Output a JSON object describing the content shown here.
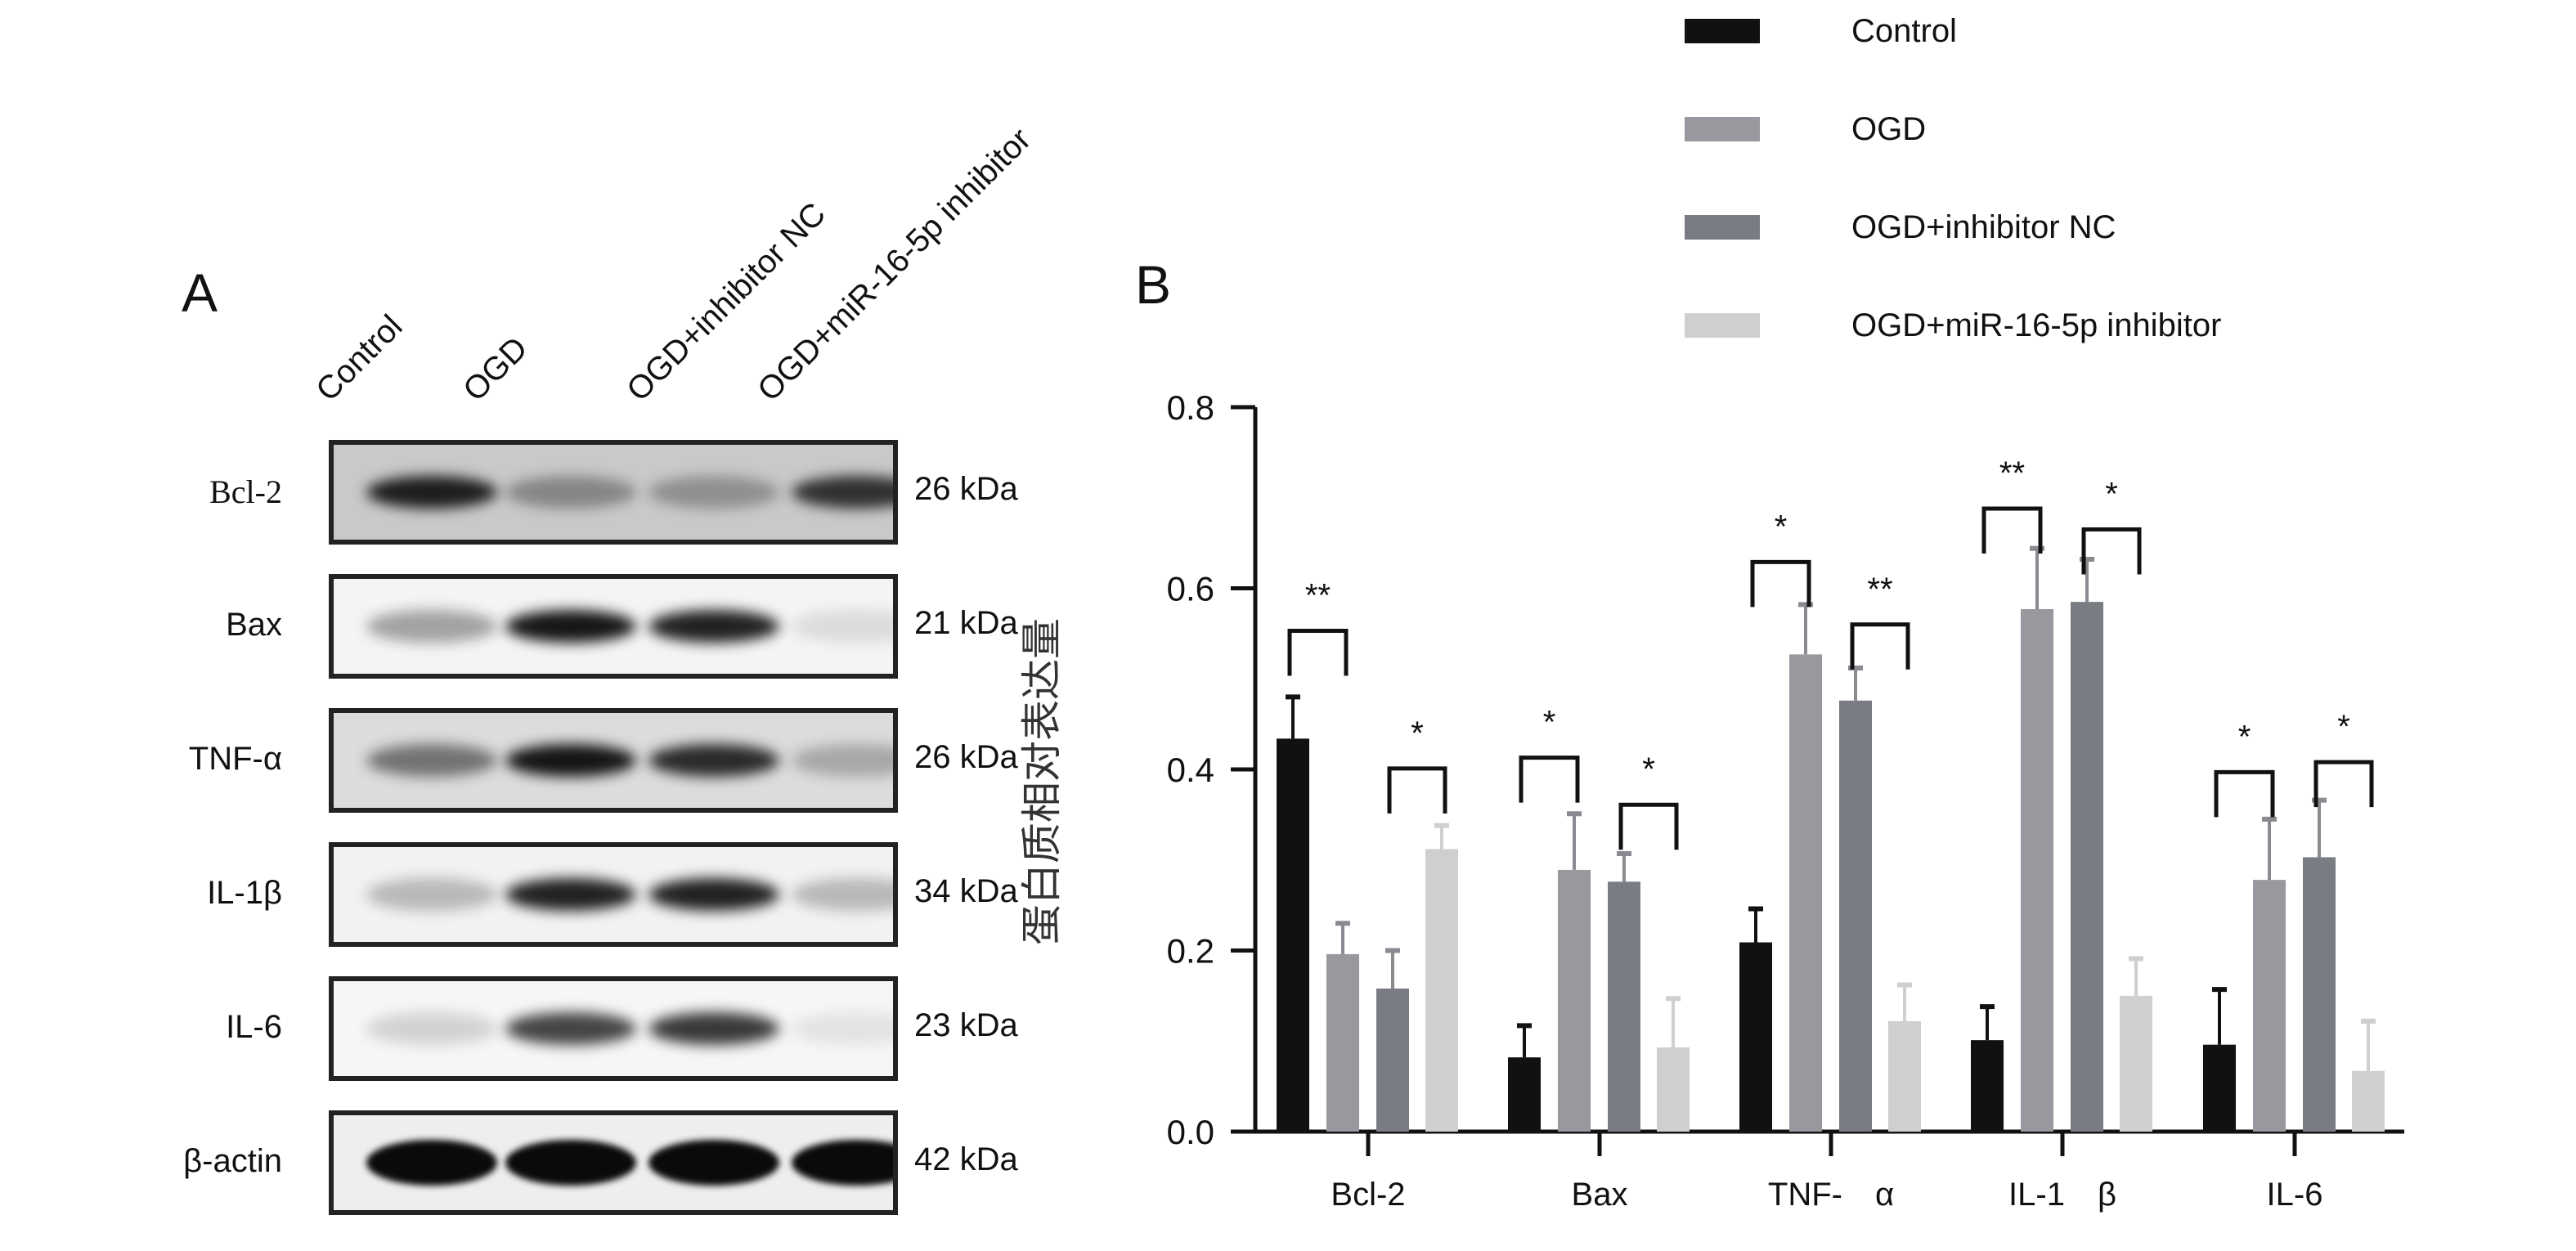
{
  "panel_a": {
    "letter": "A",
    "lanes": [
      "Control",
      "OGD",
      "OGD+inhibitor NC",
      "OGD+miR-16-5p inhibitor"
    ],
    "rows": [
      {
        "label": "Bcl-2",
        "kda": "26 kDa",
        "background": "#c9c9cb",
        "band_intensity": [
          0.9,
          0.35,
          0.3,
          0.8
        ]
      },
      {
        "label": "Bax",
        "kda": "21 kDa",
        "background": "#f4f4f4",
        "band_intensity": [
          0.35,
          0.95,
          0.9,
          0.1
        ]
      },
      {
        "label": "TNF-α",
        "kda": "26 kDa",
        "background": "#dcdcdc",
        "band_intensity": [
          0.5,
          0.95,
          0.85,
          0.25
        ]
      },
      {
        "label": "IL-1β",
        "kda": "34 kDa",
        "background": "#f2f2f2",
        "band_intensity": [
          0.25,
          0.9,
          0.9,
          0.25
        ]
      },
      {
        "label": "IL-6",
        "kda": "23 kDa",
        "background": "#f6f6f6",
        "band_intensity": [
          0.15,
          0.75,
          0.8,
          0.08
        ]
      },
      {
        "label": "β-actin",
        "kda": "42 kDa",
        "background": "#eeeeee",
        "band_intensity": [
          1,
          1,
          1,
          1
        ]
      }
    ]
  },
  "chart_data": {
    "type": "bar",
    "panel_letter": "B",
    "title": "",
    "xlabel": "",
    "ylabel": "蛋白质相对表达量",
    "ylim": [
      0,
      0.8
    ],
    "yticks": [
      "0.0",
      "0.2",
      "0.4",
      "0.6",
      "0.8"
    ],
    "ytick_values": [
      0,
      0.2,
      0.4,
      0.6,
      0.8
    ],
    "categories": [
      "Bcl-2",
      "Bax",
      "TNF-　α",
      "IL-1　β",
      "IL-6"
    ],
    "legend_position": "top-right",
    "series": [
      {
        "name": "Control",
        "color": "#111111",
        "values": [
          0.434,
          0.082,
          0.209,
          0.101,
          0.096
        ],
        "errors": [
          0.046,
          0.035,
          0.037,
          0.037,
          0.061
        ]
      },
      {
        "name": "OGD",
        "color": "#98989e",
        "values": [
          0.196,
          0.289,
          0.527,
          0.577,
          0.278
        ],
        "errors": [
          0.034,
          0.062,
          0.055,
          0.067,
          0.067
        ]
      },
      {
        "name": "OGD+inhibitor NC",
        "color": "#7a7c84",
        "values": [
          0.158,
          0.276,
          0.476,
          0.585,
          0.303
        ],
        "errors": [
          0.042,
          0.031,
          0.036,
          0.047,
          0.063
        ]
      },
      {
        "name": "OGD+miR-16-5p inhibitor",
        "color": "#cfcfcf",
        "values": [
          0.312,
          0.093,
          0.122,
          0.15,
          0.067
        ],
        "errors": [
          0.026,
          0.054,
          0.04,
          0.041,
          0.055
        ]
      }
    ],
    "significance": [
      {
        "category": 0,
        "pair": [
          0,
          1
        ],
        "label": "**",
        "level": 0.553
      },
      {
        "category": 0,
        "pair": [
          2,
          3
        ],
        "label": "*",
        "level": 0.401
      },
      {
        "category": 1,
        "pair": [
          0,
          1
        ],
        "label": "*",
        "level": 0.413
      },
      {
        "category": 1,
        "pair": [
          2,
          3
        ],
        "label": "*",
        "level": 0.361
      },
      {
        "category": 2,
        "pair": [
          0,
          1
        ],
        "label": "*",
        "level": 0.629
      },
      {
        "category": 2,
        "pair": [
          2,
          3
        ],
        "label": "**",
        "level": 0.56
      },
      {
        "category": 3,
        "pair": [
          0,
          1
        ],
        "label": "**",
        "level": 0.688
      },
      {
        "category": 3,
        "pair": [
          2,
          3
        ],
        "label": "*",
        "level": 0.665
      },
      {
        "category": 4,
        "pair": [
          0,
          1
        ],
        "label": "*",
        "level": 0.397
      },
      {
        "category": 4,
        "pair": [
          2,
          3
        ],
        "label": "*",
        "level": 0.408
      }
    ]
  }
}
